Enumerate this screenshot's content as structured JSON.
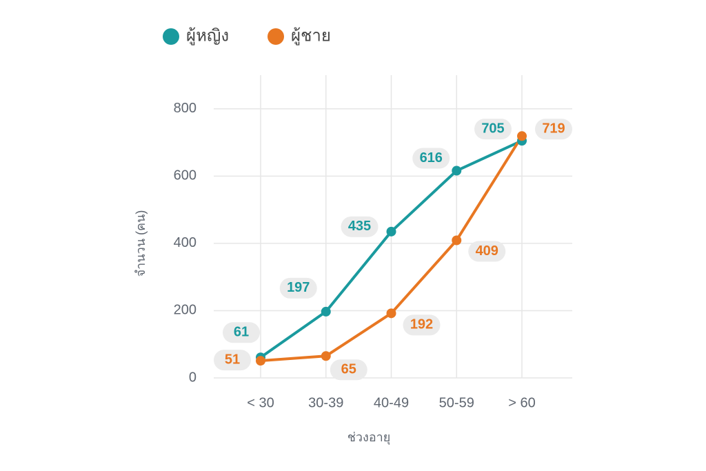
{
  "chart_data": {
    "type": "line",
    "x_label": "ช่วงอายุ",
    "y_label": "จำนวน (คน)",
    "categories": [
      "< 30",
      "30-39",
      "40-49",
      "50-59",
      "> 60"
    ],
    "series": [
      {
        "name": "ผู้หญิง",
        "color": "#1a9a9e",
        "values": [
          61,
          197,
          435,
          616,
          705
        ]
      },
      {
        "name": "ผู้ชาย",
        "color": "#e87722",
        "values": [
          51,
          65,
          192,
          409,
          719
        ]
      }
    ],
    "ylim": [
      0,
      900
    ],
    "yticks": [
      0,
      200,
      400,
      600,
      800
    ],
    "grid": true,
    "legend": "top"
  }
}
